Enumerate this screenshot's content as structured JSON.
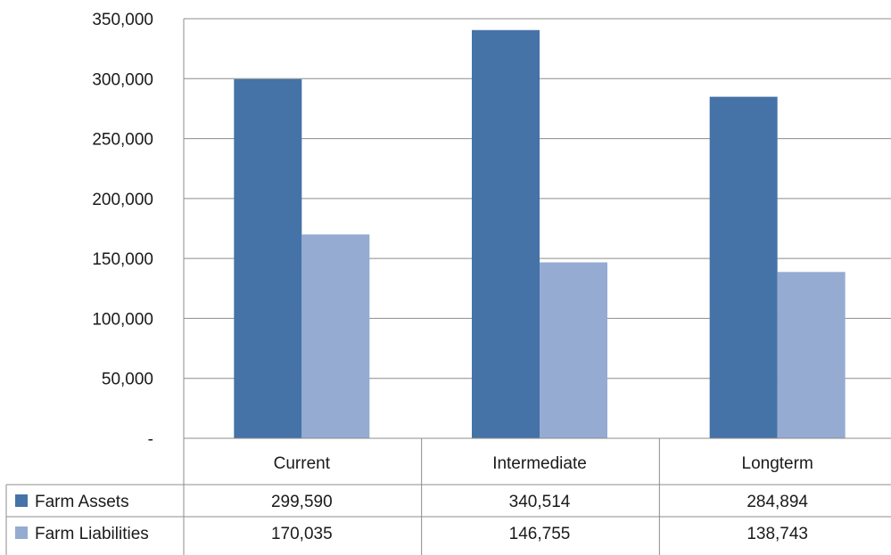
{
  "chart_data": {
    "type": "bar",
    "categories": [
      "Current",
      "Intermediate",
      "Longterm"
    ],
    "series": [
      {
        "name": "Farm Assets",
        "values": [
          299590,
          340514,
          284894
        ],
        "labels": [
          "299,590",
          "340,514",
          "284,894"
        ],
        "color": "#4572a7"
      },
      {
        "name": "Farm Liabilities",
        "values": [
          170035,
          146755,
          138743
        ],
        "labels": [
          "170,035",
          "146,755",
          "138,743"
        ],
        "color": "#95abd2"
      }
    ],
    "ylim": [
      0,
      350000
    ],
    "yticks": [
      {
        "value": 0,
        "label": "-"
      },
      {
        "value": 50000,
        "label": "50,000"
      },
      {
        "value": 100000,
        "label": "100,000"
      },
      {
        "value": 150000,
        "label": "150,000"
      },
      {
        "value": 200000,
        "label": "200,000"
      },
      {
        "value": 250000,
        "label": "250,000"
      },
      {
        "value": 300000,
        "label": "300,000"
      },
      {
        "value": 350000,
        "label": "350,000"
      }
    ],
    "grid": true,
    "legend": "data-table",
    "data_table": true
  }
}
